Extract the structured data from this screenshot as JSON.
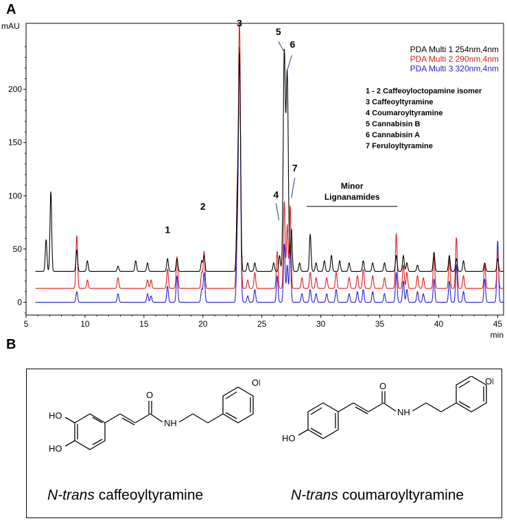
{
  "panel_a_label": "A",
  "panel_b_label": "B",
  "chart_data": {
    "type": "line",
    "ylabel": "mAU",
    "xlabel": "min",
    "xlim": [
      5,
      45.5
    ],
    "ylim": [
      -12,
      262
    ],
    "x_ticks": [
      5,
      10,
      15,
      20,
      25,
      30,
      35,
      40,
      45
    ],
    "y_ticks": [
      0,
      50,
      100,
      150,
      200
    ],
    "grid": false,
    "legend_position": "top-right",
    "series": [
      {
        "name": "PDA Multi 1 254nm,4nm",
        "color": "#000000",
        "peaks": [
          [
            6.7,
            30
          ],
          [
            7.1,
            75
          ],
          [
            9.3,
            20
          ],
          [
            10.2,
            10
          ],
          [
            12.8,
            5
          ],
          [
            14.3,
            10
          ],
          [
            15.3,
            8
          ],
          [
            17.0,
            12
          ],
          [
            17.8,
            12
          ],
          [
            19.9,
            10
          ],
          [
            20.1,
            15
          ],
          [
            22.9,
            50
          ],
          [
            23.1,
            205
          ],
          [
            23.8,
            8
          ],
          [
            24.4,
            8
          ],
          [
            26.0,
            8
          ],
          [
            26.5,
            15
          ],
          [
            26.9,
            205
          ],
          [
            27.15,
            185
          ],
          [
            27.5,
            40
          ],
          [
            28.2,
            8
          ],
          [
            29.1,
            35
          ],
          [
            29.6,
            8
          ],
          [
            30.3,
            10
          ],
          [
            30.9,
            15
          ],
          [
            31.6,
            10
          ],
          [
            32.4,
            8
          ],
          [
            33.6,
            10
          ],
          [
            34.4,
            8
          ],
          [
            35.4,
            8
          ],
          [
            36.4,
            15
          ],
          [
            37.0,
            15
          ],
          [
            37.3,
            8
          ],
          [
            38.2,
            6
          ],
          [
            39.6,
            18
          ],
          [
            40.9,
            15
          ],
          [
            41.5,
            12
          ],
          [
            42.1,
            10
          ],
          [
            43.9,
            8
          ],
          [
            45.0,
            12
          ]
        ]
      },
      {
        "name": "PDA Multi 2 290nm,4nm",
        "color": "#e31a1c",
        "peaks": [
          [
            9.3,
            50
          ],
          [
            10.2,
            8
          ],
          [
            12.8,
            10
          ],
          [
            15.3,
            8
          ],
          [
            15.6,
            8
          ],
          [
            17.0,
            18
          ],
          [
            17.8,
            30
          ],
          [
            19.9,
            15
          ],
          [
            20.1,
            35
          ],
          [
            22.9,
            75
          ],
          [
            23.1,
            250
          ],
          [
            23.8,
            8
          ],
          [
            24.4,
            15
          ],
          [
            26.3,
            35
          ],
          [
            26.9,
            82
          ],
          [
            27.15,
            60
          ],
          [
            27.4,
            78
          ],
          [
            28.4,
            10
          ],
          [
            29.1,
            15
          ],
          [
            29.6,
            10
          ],
          [
            30.5,
            10
          ],
          [
            31.3,
            15
          ],
          [
            32.4,
            10
          ],
          [
            33.1,
            12
          ],
          [
            33.6,
            18
          ],
          [
            34.4,
            12
          ],
          [
            35.4,
            10
          ],
          [
            36.4,
            52
          ],
          [
            37.0,
            22
          ],
          [
            37.3,
            15
          ],
          [
            38.2,
            12
          ],
          [
            38.7,
            10
          ],
          [
            39.6,
            30
          ],
          [
            40.9,
            28
          ],
          [
            41.5,
            48
          ],
          [
            42.1,
            12
          ],
          [
            43.9,
            22
          ],
          [
            45.0,
            35
          ]
        ]
      },
      {
        "name": "PDA Multi 3 320nm,4nm",
        "color": "#1f1fd6",
        "peaks": [
          [
            9.3,
            10
          ],
          [
            12.8,
            8
          ],
          [
            15.3,
            8
          ],
          [
            15.6,
            6
          ],
          [
            17.0,
            15
          ],
          [
            17.8,
            25
          ],
          [
            19.9,
            12
          ],
          [
            20.1,
            28
          ],
          [
            22.9,
            45
          ],
          [
            23.1,
            240
          ],
          [
            23.8,
            6
          ],
          [
            24.4,
            12
          ],
          [
            26.3,
            25
          ],
          [
            26.9,
            55
          ],
          [
            27.15,
            35
          ],
          [
            27.4,
            50
          ],
          [
            28.4,
            8
          ],
          [
            29.1,
            12
          ],
          [
            29.6,
            8
          ],
          [
            30.5,
            8
          ],
          [
            31.3,
            12
          ],
          [
            32.4,
            8
          ],
          [
            33.1,
            10
          ],
          [
            33.6,
            12
          ],
          [
            34.4,
            10
          ],
          [
            35.4,
            8
          ],
          [
            36.4,
            28
          ],
          [
            37.0,
            20
          ],
          [
            37.3,
            12
          ],
          [
            38.2,
            10
          ],
          [
            38.7,
            8
          ],
          [
            39.6,
            22
          ],
          [
            40.9,
            20
          ],
          [
            41.5,
            35
          ],
          [
            42.1,
            10
          ],
          [
            43.9,
            22
          ],
          [
            45.0,
            58
          ]
        ]
      }
    ],
    "baselines": [
      29,
      13,
      0
    ],
    "peak_labels": [
      {
        "text": "1",
        "x": 17.0,
        "y": 65
      },
      {
        "text": "2",
        "x": 20.0,
        "y": 87
      },
      {
        "text": "3",
        "x": 23.1,
        "y": 259
      },
      {
        "text": "4",
        "x": 26.2,
        "y": 98
      },
      {
        "text": "5",
        "x": 26.4,
        "y": 251
      },
      {
        "text": "6",
        "x": 27.6,
        "y": 239
      },
      {
        "text": "7",
        "x": 27.8,
        "y": 123
      }
    ],
    "peak_pointers": [
      {
        "from": [
          26.4,
          245
        ],
        "to": [
          26.95,
          234
        ]
      },
      {
        "from": [
          27.55,
          232
        ],
        "to": [
          27.15,
          218
        ]
      },
      {
        "from": [
          26.2,
          93
        ],
        "to": [
          26.45,
          77
        ]
      },
      {
        "from": [
          27.8,
          117
        ],
        "to": [
          27.5,
          98
        ]
      }
    ],
    "region_annotation": {
      "lines": [
        "Minor",
        "Lignanamides"
      ],
      "x_start": 28.8,
      "x_end": 36.5,
      "y": 90
    },
    "compound_legend": [
      "1 - 2 Caffeoyloctopamine isomer",
      "3  Caffeoyltyramine",
      "4  Coumaroyltyramine",
      "5  Cannabisin B",
      "6  Cannabisin A",
      "7  Feruloyltyramine"
    ]
  },
  "structures": [
    {
      "prefix": "N-trans",
      "name": " caffeoyltyramine",
      "atoms": {
        "o": "O",
        "nh": "NH",
        "oh_top": "OH",
        "ho_1": "HO",
        "ho_2": "HO"
      }
    },
    {
      "prefix": "N-trans",
      "name": " coumaroyltyramine",
      "atoms": {
        "o": "O",
        "nh": "NH",
        "oh_top": "OH",
        "ho_1": "HO"
      }
    }
  ]
}
